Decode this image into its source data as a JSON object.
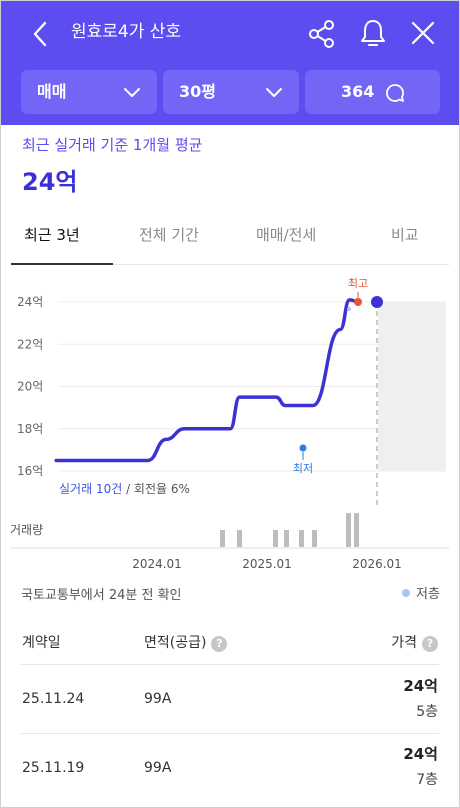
{
  "header": {
    "title": "원효로4가 산호",
    "deal_type": "매매",
    "area": "30평",
    "talk_count": "364",
    "bg_color": "#5b4df0"
  },
  "summary": {
    "subtitle": "최근 실거래 기준 1개월 평균",
    "price": "24억"
  },
  "tabs": [
    {
      "label": "최근 3년",
      "active": true
    },
    {
      "label": "전체 기간",
      "active": false
    },
    {
      "label": "매매/전세",
      "active": false
    },
    {
      "label": "비교",
      "active": false
    }
  ],
  "chart_data": {
    "type": "line",
    "y_ticks": [
      "24억",
      "22억",
      "20억",
      "18억",
      "16억"
    ],
    "x_ticks": [
      "2024.01",
      "2025.01",
      "2026.01"
    ],
    "ylim": [
      16,
      24
    ],
    "series": [
      {
        "x": [
          "2023.02",
          "2023.12",
          "2024.02",
          "2024.04",
          "2024.09",
          "2024.10",
          "2025.02",
          "2025.03",
          "2025.06",
          "2025.09",
          "2025.10",
          "2025.11"
        ],
        "values": [
          16.5,
          16.5,
          17.5,
          18.0,
          18.0,
          19.5,
          19.5,
          19.1,
          19.1,
          22.7,
          24.1,
          24.0
        ]
      }
    ],
    "markers": {
      "high_label": "최고",
      "low_label": "최저"
    },
    "volume_label": "거래량",
    "volume_bars": [
      1,
      1,
      1,
      1,
      1,
      1,
      2,
      2
    ],
    "line_color": "#3d32d4",
    "high_color": "#e8553a",
    "low_color": "#2a7be4"
  },
  "info": {
    "prefix": "실거래 10건",
    "suffix": " / 회전율 6%",
    "source_note": "국토교통부에서 24분 전 확인",
    "legend_low": "저층"
  },
  "table": {
    "headers": {
      "date": "계약일",
      "area": "면적(공급)",
      "price": "가격"
    },
    "help_glyph": "?",
    "rows": [
      {
        "date": "25.11.24",
        "area": "99A",
        "price": "24억",
        "floor": "5층"
      },
      {
        "date": "25.11.19",
        "area": "99A",
        "price": "24억",
        "floor": "7층"
      }
    ]
  }
}
